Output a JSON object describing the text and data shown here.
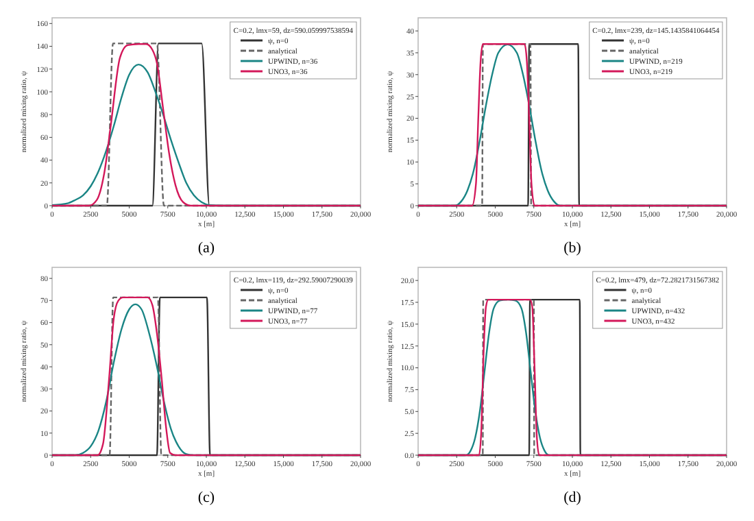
{
  "chart_data": [
    {
      "type": "line",
      "legend_title": "C=0.2, lmx=59, dz=590.059997538594",
      "xlabel": "x [m]",
      "ylabel": "normalized mixing ratio, ψ",
      "annotations": [
        "(a)"
      ],
      "xlim": [
        0,
        20000
      ],
      "ylim": [
        0,
        165
      ],
      "xticks": [
        0,
        2500,
        5000,
        7500,
        {
          "value": 10000,
          "label": "10,000"
        },
        {
          "value": 12500,
          "label": "12,500"
        },
        {
          "value": 15000,
          "label": "15,000"
        },
        {
          "value": 17500,
          "label": "17,500"
        },
        {
          "value": 20000,
          "label": "20,000"
        }
      ],
      "yticks": [
        0,
        20,
        40,
        60,
        80,
        100,
        120,
        140,
        160
      ],
      "legend": "top right",
      "grid": false,
      "series": [
        {
          "name": "ψ, n=0",
          "color": "#333333",
          "x": [
            0,
            6500,
            6900,
            9700,
            10200,
            20000
          ],
          "values": [
            0,
            0,
            142.5,
            142.5,
            0,
            0
          ]
        },
        {
          "name": "analytical",
          "color": "#666666",
          "line_style": "dashed",
          "x": [
            0,
            3550,
            3950,
            6800,
            7250,
            20000
          ],
          "values": [
            0,
            0,
            142.5,
            142.5,
            0,
            0
          ]
        },
        {
          "name": "UPWIND, n=36",
          "color": "#1a8585",
          "x": [
            0,
            1000,
            1500,
            2000,
            2500,
            3000,
            3500,
            4000,
            4500,
            5000,
            5600,
            6200,
            6700,
            7200,
            7700,
            8200,
            8700,
            9200,
            9700,
            10200,
            11000,
            20000
          ],
          "values": [
            0.5,
            2,
            5,
            9,
            17,
            30,
            48,
            70,
            95,
            115,
            124,
            117,
            100,
            80,
            58,
            38,
            20,
            9,
            3,
            0.5,
            0,
            0
          ]
        },
        {
          "name": "UNO3, n=36",
          "color": "#d3185a",
          "x": [
            0,
            2400,
            2900,
            3400,
            3800,
            4400,
            4900,
            5600,
            6100,
            6500,
            6800,
            7200,
            7600,
            8000,
            8500,
            9000,
            20000
          ],
          "values": [
            0,
            0,
            5,
            30,
            70,
            130,
            141,
            142,
            142,
            137,
            125,
            85,
            45,
            18,
            3,
            0,
            0
          ]
        }
      ]
    },
    {
      "type": "line",
      "legend_title": "C=0.2, lmx=239, dz=145.1435841064454",
      "xlabel": "x [m]",
      "ylabel": "normalized mixing ratio, ψ",
      "annotations": [
        "(b)"
      ],
      "xlim": [
        0,
        20000
      ],
      "ylim": [
        0,
        43
      ],
      "xticks": [
        0,
        2500,
        5000,
        7500,
        {
          "value": 10000,
          "label": "10,000"
        },
        {
          "value": 12500,
          "label": "12,500"
        },
        {
          "value": 15000,
          "label": "15,000"
        },
        {
          "value": 17500,
          "label": "17,500"
        },
        {
          "value": 20000,
          "label": "20,000"
        }
      ],
      "yticks": [
        0,
        5,
        10,
        15,
        20,
        25,
        30,
        35,
        40
      ],
      "legend": "top right",
      "grid": false,
      "series": [
        {
          "name": "ψ, n=0",
          "color": "#333333",
          "x": [
            0,
            7130,
            7200,
            10380,
            10440,
            20000
          ],
          "values": [
            0,
            0,
            37,
            37,
            0,
            0
          ]
        },
        {
          "name": "analytical",
          "color": "#666666",
          "line_style": "dashed",
          "x": [
            0,
            4150,
            4200,
            7280,
            7330,
            20000
          ],
          "values": [
            0,
            0,
            37,
            37,
            0,
            0
          ]
        },
        {
          "name": "UPWIND, n=219",
          "color": "#1a8585",
          "x": [
            0,
            2400,
            2800,
            3200,
            3600,
            4000,
            4400,
            4800,
            5200,
            5800,
            6400,
            6800,
            7200,
            7600,
            8000,
            8400,
            8800,
            9200,
            20000
          ],
          "values": [
            0,
            0,
            1,
            3.5,
            8,
            15,
            23,
            30,
            35,
            36.9,
            35,
            30,
            23,
            15,
            8,
            3.5,
            1,
            0,
            0
          ]
        },
        {
          "name": "UNO3, n=219",
          "color": "#d3185a",
          "x": [
            0,
            3500,
            3750,
            3900,
            4050,
            4200,
            6900,
            7050,
            7200,
            7350,
            7550,
            20000
          ],
          "values": [
            0,
            0,
            5,
            20,
            33,
            37,
            37,
            33,
            20,
            5,
            0,
            0
          ]
        }
      ]
    },
    {
      "type": "line",
      "legend_title": "C=0.2, lmx=119, dz=292.59007290039",
      "xlabel": "x [m]",
      "ylabel": "normalized mixing ratio, ψ",
      "annotations": [
        "(c)"
      ],
      "xlim": [
        0,
        20000
      ],
      "ylim": [
        0,
        85
      ],
      "xticks": [
        0,
        2500,
        5000,
        7500,
        {
          "value": 10000,
          "label": "10,000"
        },
        {
          "value": 12500,
          "label": "12,500"
        },
        {
          "value": 15000,
          "label": "15,000"
        },
        {
          "value": 17500,
          "label": "17,500"
        },
        {
          "value": 20000,
          "label": "20,000"
        }
      ],
      "yticks": [
        0,
        10,
        20,
        30,
        40,
        50,
        60,
        70,
        80
      ],
      "legend": "top right",
      "grid": false,
      "series": [
        {
          "name": "ψ, n=0",
          "color": "#333333",
          "x": [
            0,
            6800,
            6990,
            10040,
            10240,
            20000
          ],
          "values": [
            0,
            0,
            71.4,
            71.4,
            0,
            0
          ]
        },
        {
          "name": "analytical",
          "color": "#666666",
          "line_style": "dashed",
          "x": [
            0,
            3730,
            3960,
            6860,
            7080,
            20000
          ],
          "values": [
            0,
            0,
            71.4,
            71.4,
            0,
            0
          ]
        },
        {
          "name": "UPWIND, n=77",
          "color": "#1a8585",
          "x": [
            0,
            1500,
            2000,
            2500,
            3000,
            3500,
            4000,
            4500,
            5000,
            5400,
            5800,
            6300,
            6800,
            7200,
            7700,
            8200,
            8700,
            9200,
            20000
          ],
          "values": [
            0,
            0,
            1,
            4,
            11,
            24,
            42,
            57,
            66,
            68.3,
            66,
            55,
            40,
            26,
            12,
            4,
            0.5,
            0,
            0
          ]
        },
        {
          "name": "UNO3, n=77",
          "color": "#d3185a",
          "x": [
            0,
            2950,
            3300,
            3700,
            4000,
            4300,
            4600,
            6200,
            6500,
            6800,
            7100,
            7400,
            7650,
            8000,
            20000
          ],
          "values": [
            0,
            0,
            5,
            35,
            62,
            70,
            71.4,
            71.4,
            68,
            55,
            35,
            12,
            1,
            0,
            0
          ]
        }
      ]
    },
    {
      "type": "line",
      "legend_title": "C=0.2, lmx=479, dz=72.2821731567382",
      "xlabel": "x [m]",
      "ylabel": "normalized mixing ratio, ψ",
      "annotations": [
        "(d)"
      ],
      "xlim": [
        0,
        20000
      ],
      "ylim": [
        0,
        21.5
      ],
      "xticks": [
        0,
        2500,
        5000,
        7500,
        {
          "value": 10000,
          "label": "10,000"
        },
        {
          "value": 12500,
          "label": "12,500"
        },
        {
          "value": 15000,
          "label": "15,000"
        },
        {
          "value": 17500,
          "label": "17,500"
        },
        {
          "value": 20000,
          "label": "20,000"
        }
      ],
      "yticks": [
        {
          "value": 0,
          "label": "0.0"
        },
        2.5,
        {
          "value": 5,
          "label": "5.0"
        },
        7.5,
        {
          "value": 10,
          "label": "10.0"
        },
        12.5,
        {
          "value": 15,
          "label": "15.0"
        },
        17.5,
        {
          "value": 20,
          "label": "20.0"
        }
      ],
      "legend": "top right",
      "grid": false,
      "series": [
        {
          "name": "ψ, n=0",
          "color": "#333333",
          "x": [
            0,
            7200,
            7250,
            10480,
            10520,
            20000
          ],
          "values": [
            0,
            0,
            17.8,
            17.8,
            0,
            0
          ]
        },
        {
          "name": "analytical",
          "color": "#666666",
          "line_style": "dashed",
          "x": [
            0,
            4190,
            4220,
            7500,
            7530,
            20000
          ],
          "values": [
            0,
            0,
            17.8,
            17.8,
            0,
            0
          ]
        },
        {
          "name": "UPWIND, n=432",
          "color": "#1a8585",
          "x": [
            0,
            3100,
            3400,
            3700,
            4000,
            4300,
            4600,
            4900,
            5300,
            5800,
            6300,
            6700,
            7000,
            7300,
            7600,
            7900,
            8200,
            8500,
            20000
          ],
          "values": [
            0,
            0,
            0.5,
            2,
            5,
            9.5,
            14,
            16.8,
            17.7,
            17.8,
            17.7,
            16.8,
            14,
            9.5,
            5,
            2,
            0.5,
            0,
            0
          ]
        },
        {
          "name": "UNO3, n=432",
          "color": "#d3185a",
          "x": [
            0,
            3950,
            4100,
            4250,
            4400,
            4550,
            7250,
            7400,
            7550,
            7700,
            7850,
            20000
          ],
          "values": [
            0,
            0,
            3,
            12,
            17,
            17.8,
            17.8,
            17,
            10,
            2,
            0,
            0
          ]
        }
      ]
    }
  ]
}
